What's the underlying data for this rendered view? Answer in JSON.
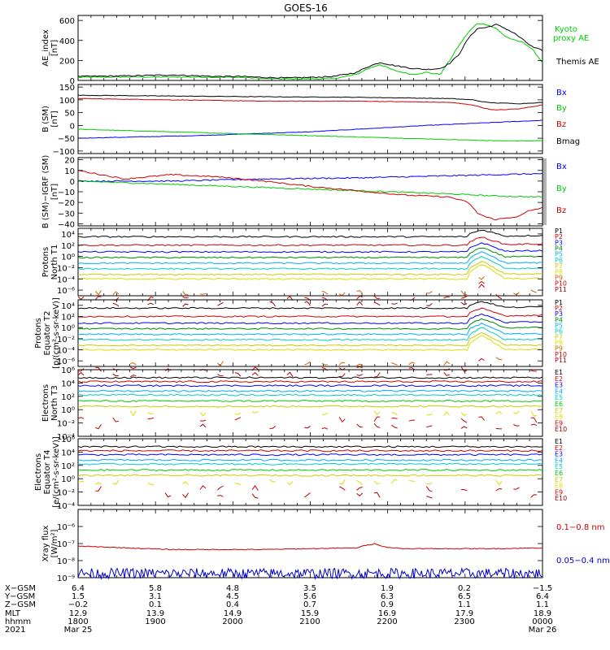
{
  "title": "GOES-16",
  "chart_data": [
    {
      "type": "line",
      "ylabel": [
        "AE_index",
        "[nT]"
      ],
      "ylim": [
        0,
        650
      ],
      "yticks": [
        "0",
        "200",
        "400",
        "600"
      ],
      "ytick_values": [
        0,
        200,
        400,
        600
      ],
      "series": [
        {
          "name": "Kyoto proxy AE",
          "color": "#00cc00",
          "x": [
            0,
            0.1,
            0.2,
            0.3,
            0.35,
            0.4,
            0.45,
            0.5,
            0.55,
            0.6,
            0.62,
            0.65,
            0.68,
            0.72,
            0.75,
            0.78,
            0.8,
            0.82,
            0.84,
            0.86,
            0.88,
            0.9,
            0.92,
            0.94,
            0.96,
            0.98,
            1.0
          ],
          "y": [
            30,
            35,
            35,
            32,
            30,
            20,
            15,
            15,
            20,
            60,
            110,
            160,
            100,
            60,
            80,
            60,
            200,
            350,
            480,
            570,
            560,
            520,
            440,
            400,
            380,
            300,
            180
          ]
        },
        {
          "name": "Themis AE",
          "color": "#000000",
          "x": [
            0,
            0.1,
            0.2,
            0.3,
            0.35,
            0.4,
            0.45,
            0.5,
            0.55,
            0.6,
            0.62,
            0.65,
            0.68,
            0.72,
            0.75,
            0.78,
            0.8,
            0.82,
            0.84,
            0.86,
            0.88,
            0.9,
            0.92,
            0.94,
            0.96,
            0.98,
            1.0
          ],
          "y": [
            40,
            45,
            55,
            40,
            40,
            30,
            25,
            30,
            40,
            80,
            130,
            180,
            150,
            120,
            110,
            120,
            170,
            260,
            420,
            520,
            530,
            560,
            520,
            470,
            400,
            330,
            300
          ]
        }
      ],
      "legend": [
        {
          "label": "Kyoto",
          "color": "#00cc00"
        },
        {
          "label": "proxy AE",
          "color": "#00cc00"
        },
        {
          "label": "Themis AE",
          "color": "#000000"
        }
      ]
    },
    {
      "type": "line",
      "ylabel": [
        "B (SM)",
        "[nT]"
      ],
      "ylim": [
        -110,
        160
      ],
      "yticks": [
        "150",
        "100",
        "50",
        "0",
        "−50",
        "−100"
      ],
      "ytick_values": [
        150,
        100,
        50,
        0,
        -50,
        -100
      ],
      "series": [
        {
          "name": "Bx",
          "color": "#0000ff",
          "x": [
            0,
            0.25,
            0.5,
            0.75,
            1.0
          ],
          "y": [
            -50,
            -40,
            -25,
            0,
            20
          ]
        },
        {
          "name": "By",
          "color": "#00cc00",
          "x": [
            0,
            0.2,
            0.4,
            0.6,
            0.8,
            0.9,
            1.0
          ],
          "y": [
            -15,
            -25,
            -35,
            -45,
            -55,
            -60,
            -60
          ]
        },
        {
          "name": "Bz",
          "color": "#cc0000",
          "x": [
            0,
            0.2,
            0.4,
            0.6,
            0.8,
            0.85,
            0.88,
            0.9,
            0.95,
            1.0
          ],
          "y": [
            105,
            100,
            95,
            95,
            90,
            80,
            65,
            60,
            65,
            80
          ]
        },
        {
          "name": "Bmag",
          "color": "#000000",
          "x": [
            0,
            0.2,
            0.4,
            0.6,
            0.8,
            0.85,
            0.88,
            0.9,
            0.95,
            1.0
          ],
          "y": [
            118,
            115,
            112,
            110,
            105,
            100,
            90,
            88,
            85,
            90
          ]
        }
      ],
      "legend": [
        {
          "label": "Bx",
          "color": "#0000ff"
        },
        {
          "label": "By",
          "color": "#00cc00"
        },
        {
          "label": "Bz",
          "color": "#cc0000"
        },
        {
          "label": "Bmag",
          "color": "#000000"
        }
      ]
    },
    {
      "type": "line",
      "ylabel": [
        "B (SM)−IGRF (SM)",
        "[nT]"
      ],
      "ylim": [
        -42,
        22
      ],
      "yticks": [
        "20",
        "10",
        "0",
        "−10",
        "−20",
        "−30",
        "−40"
      ],
      "ytick_values": [
        20,
        10,
        0,
        -10,
        -20,
        -30,
        -40
      ],
      "series": [
        {
          "name": "Bx",
          "color": "#0000ff",
          "x": [
            0,
            0.2,
            0.4,
            0.6,
            0.8,
            0.9,
            1.0
          ],
          "y": [
            0,
            0,
            2,
            3,
            5,
            6,
            7
          ]
        },
        {
          "name": "By",
          "color": "#00cc00",
          "x": [
            0,
            0.2,
            0.4,
            0.6,
            0.8,
            0.9,
            1.0
          ],
          "y": [
            0,
            -3,
            -6,
            -9,
            -12,
            -14,
            -15
          ]
        },
        {
          "name": "Bz",
          "color": "#cc0000",
          "x": [
            0,
            0.05,
            0.1,
            0.2,
            0.3,
            0.4,
            0.5,
            0.6,
            0.7,
            0.8,
            0.84,
            0.86,
            0.88,
            0.9,
            0.95,
            0.97,
            1.0
          ],
          "y": [
            10,
            6,
            2,
            6,
            4,
            0,
            -5,
            -9,
            -13,
            -15,
            -20,
            -30,
            -34,
            -36,
            -33,
            -28,
            -25
          ]
        }
      ],
      "legend": [
        {
          "label": "Bx",
          "color": "#0000ff"
        },
        {
          "label": "By",
          "color": "#00cc00"
        },
        {
          "label": "Bz",
          "color": "#cc0000"
        }
      ]
    },
    {
      "type": "line",
      "scale": "log",
      "ylabel": [
        "Protons",
        "North T1"
      ],
      "ylim_exp": [
        -7,
        5
      ],
      "yticks": [
        "10⁴",
        "10²",
        "10⁰",
        "10⁻²",
        "10⁻⁴",
        "10⁻⁶"
      ],
      "ytick_exps": [
        4,
        2,
        0,
        -2,
        -4,
        -6
      ],
      "legend": [
        "P1",
        "P2",
        "P3",
        "P4",
        "P5",
        "P6",
        "P7",
        "P8",
        "P9",
        "P10",
        "P11"
      ]
    },
    {
      "type": "line",
      "scale": "log",
      "ylabel": [
        "Protons",
        "Equator T2",
        "[p/(cm²-s-sr-keV)]"
      ],
      "ylim_exp": [
        -7,
        5
      ],
      "yticks": [
        "10⁴",
        "10²",
        "10⁰",
        "10⁻²",
        "10⁻⁴",
        "10⁻⁶"
      ],
      "ytick_exps": [
        4,
        2,
        0,
        -2,
        -4,
        -6
      ],
      "legend": [
        "P1",
        "P2",
        "P3",
        "P4",
        "P5",
        "P6",
        "P7",
        "P8",
        "P9",
        "P10",
        "P11"
      ]
    },
    {
      "type": "line",
      "scale": "log",
      "ylabel": [
        "Electrons",
        "North T3"
      ],
      "ylim_exp": [
        -4,
        6
      ],
      "yticks": [
        "10⁶",
        "10⁴",
        "10²",
        "10⁰",
        "10⁻²",
        "10⁻⁴"
      ],
      "ytick_exps": [
        6,
        4,
        2,
        0,
        -2,
        -4
      ],
      "legend": [
        "E1",
        "E2",
        "E3",
        "E4",
        "E5",
        "E6",
        "E7",
        "E8",
        "E9",
        "E10"
      ]
    },
    {
      "type": "line",
      "scale": "log",
      "ylabel": [
        "Electrons",
        "Equator T4",
        "[e/(cm²-s-sr-keV)]"
      ],
      "ylim_exp": [
        -4,
        6
      ],
      "yticks": [
        "10⁶",
        "10⁴",
        "10²",
        "10⁰",
        "10⁻²",
        "10⁻⁴"
      ],
      "ytick_exps": [
        6,
        4,
        2,
        0,
        -2,
        -4
      ],
      "legend": [
        "E1",
        "E2",
        "E3",
        "E4",
        "E5",
        "E6",
        "E7",
        "E8",
        "E9",
        "E10"
      ]
    },
    {
      "type": "line",
      "scale": "log",
      "ylabel": [
        "Xray flux",
        "[W/m²]"
      ],
      "ylim_exp": [
        -9,
        -5
      ],
      "yticks": [
        "10⁻⁶",
        "10⁻⁷",
        "10⁻⁸",
        "10⁻⁹"
      ],
      "ytick_exps": [
        -6,
        -7,
        -8,
        -9
      ],
      "series": [
        {
          "name": "0.1−0.8 nm",
          "color": "#cc0000",
          "x": [
            0,
            0.1,
            0.2,
            0.3,
            0.4,
            0.5,
            0.6,
            0.62,
            0.64,
            0.66,
            0.7,
            0.8,
            0.9,
            1.0
          ],
          "y_exp": [
            -7.15,
            -7.25,
            -7.35,
            -7.35,
            -7.35,
            -7.3,
            -7.25,
            -7.1,
            -7.0,
            -7.2,
            -7.3,
            -7.3,
            -7.3,
            -7.25
          ]
        },
        {
          "name": "0.05−0.4 nm",
          "color": "#0000cc",
          "x": [
            0,
            1
          ],
          "y_exp": [
            -8.75,
            -8.75
          ]
        }
      ],
      "legend": [
        {
          "label": "0.1−0.8 nm",
          "color": "#cc0000"
        },
        {
          "label": "0.05−0.4 nm",
          "color": "#0000cc"
        }
      ]
    }
  ],
  "proton_colors": [
    "#000000",
    "#cc0000",
    "#0000ff",
    "#008800",
    "#00aaff",
    "#00cccc",
    "#cccc00",
    "#dddd00",
    "#cc6600",
    "#cc0000",
    "#aa0000"
  ],
  "proton_levels": [
    3.5,
    2.0,
    0.8,
    -0.2,
    -1.2,
    -2.2,
    -3.2,
    -4.0,
    -6.5,
    -7.5,
    -8.5
  ],
  "electron_colors": [
    "#000000",
    "#cc0000",
    "#0000ff",
    "#00aaff",
    "#00cccc",
    "#00cc00",
    "#cccc00",
    "#dddd00",
    "#cc0000",
    "#aa0000"
  ],
  "electron_levels": [
    4.8,
    4.2,
    3.6,
    2.8,
    2.2,
    1.3,
    0.5,
    -0.5,
    -1.5,
    -2.5
  ],
  "x_axis": {
    "rows": [
      {
        "label": "X−GSM",
        "values": [
          "6.4",
          "5.8",
          "4.8",
          "3.5",
          "1.9",
          "0.2",
          "−1.5"
        ]
      },
      {
        "label": "Y−GSM",
        "values": [
          "1.5",
          "3.1",
          "4.5",
          "5.6",
          "6.3",
          "6.5",
          "6.4"
        ]
      },
      {
        "label": "Z−GSM",
        "values": [
          "−0.2",
          "0.1",
          "0.4",
          "0.7",
          "0.9",
          "1.1",
          "1.1"
        ]
      },
      {
        "label": "MLT",
        "values": [
          "12.9",
          "13.9",
          "14.9",
          "15.9",
          "16.9",
          "17.9",
          "18.9"
        ]
      },
      {
        "label": "hhmm",
        "values": [
          "1800",
          "1900",
          "2000",
          "2100",
          "2200",
          "2300",
          "0000"
        ]
      },
      {
        "label": "2021",
        "values": [
          "Mar 25",
          "",
          "",
          "",
          "",
          "",
          "Mar 26"
        ]
      }
    ]
  }
}
